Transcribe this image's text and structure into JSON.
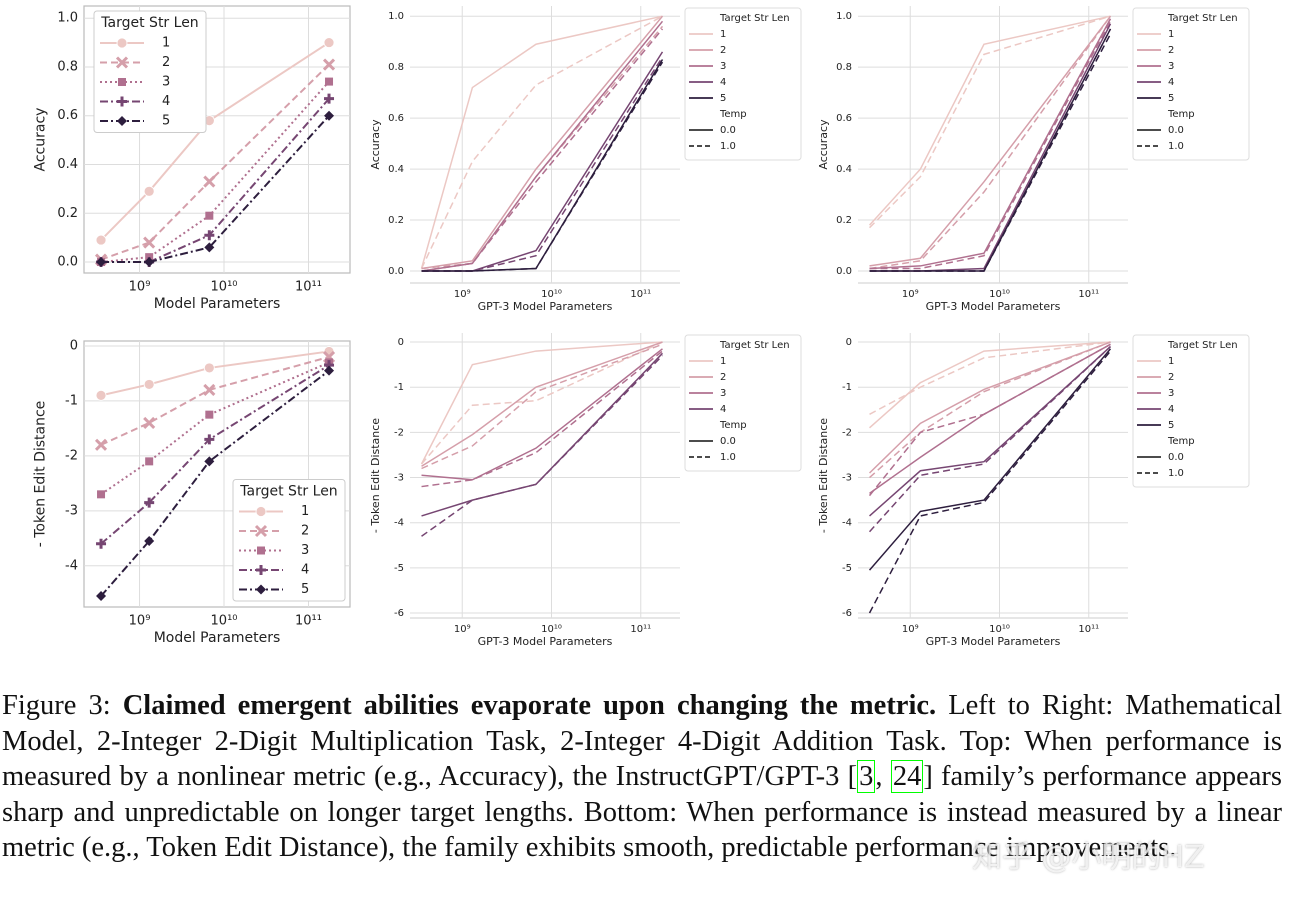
{
  "chart_data": [
    {
      "type": "line",
      "ylabel": "Accuracy",
      "xlabel": "Model Parameters",
      "log_x": true,
      "grid": true,
      "x": [
        350000000,
        1300000000,
        6700000000,
        175000000000
      ],
      "xlim": [
        220000000,
        310000000000
      ],
      "xticks": [
        {
          "value": 1000000000,
          "label": "10⁹"
        },
        {
          "value": 10000000000,
          "label": "10¹⁰"
        },
        {
          "value": 100000000000,
          "label": "10¹¹"
        }
      ],
      "ylim": [
        -0.045,
        1.05
      ],
      "yticks": [
        {
          "value": 0,
          "label": "0.0"
        },
        0.2,
        0.4,
        0.6,
        0.8,
        {
          "value": 1,
          "label": "1.0"
        }
      ],
      "legend_title": "Target Str Len",
      "legend": "upper left",
      "series": [
        {
          "name": "1",
          "color": "#ecc8c4",
          "dash": "solid",
          "marker": "o",
          "values": [
            0.09,
            0.29,
            0.58,
            0.9
          ]
        },
        {
          "name": "2",
          "color": "#d59faa",
          "dash": "dashed",
          "marker": "X",
          "values": [
            0.01,
            0.08,
            0.33,
            0.81
          ]
        },
        {
          "name": "3",
          "color": "#b0708f",
          "dash": "dotted",
          "marker": "s",
          "values": [
            0.0,
            0.02,
            0.19,
            0.74
          ]
        },
        {
          "name": "4",
          "color": "#764672",
          "dash": "dashdot",
          "marker": "P",
          "values": [
            0.0,
            0.0,
            0.11,
            0.67
          ]
        },
        {
          "name": "5",
          "color": "#2d1e3e",
          "dash": "dashdot",
          "marker": "D",
          "values": [
            0.0,
            0.0,
            0.06,
            0.6
          ]
        }
      ]
    },
    {
      "type": "line",
      "ylabel": "Accuracy",
      "xlabel": "GPT-3 Model Parameters",
      "log_x": true,
      "grid": true,
      "x": [
        350000000,
        1300000000,
        6700000000,
        175000000000
      ],
      "xlim": [
        260000000,
        275000000000
      ],
      "xticks": [
        {
          "value": 1000000000,
          "label": "10⁹"
        },
        {
          "value": 10000000000,
          "label": "10¹⁰"
        },
        {
          "value": 100000000000,
          "label": "10¹¹"
        }
      ],
      "ylim": [
        -0.047,
        1.04
      ],
      "yticks": [
        {
          "value": 0,
          "label": "0.0"
        },
        0.2,
        0.4,
        0.6,
        0.8,
        {
          "value": 1,
          "label": "1.0"
        }
      ],
      "legend_title": "Target Str Len",
      "legend": "outside right",
      "temp_title": "Temp",
      "temps": [
        "0.0",
        "1.0"
      ],
      "series": [
        {
          "name": "1",
          "color": "#ecc8c4",
          "lines": [
            [
              0.01,
              0.72,
              0.89,
              1.0
            ],
            [
              0.01,
              0.43,
              0.73,
              1.0
            ]
          ]
        },
        {
          "name": "2",
          "color": "#d59faa",
          "lines": [
            [
              0.01,
              0.04,
              0.4,
              1.0
            ],
            [
              0.01,
              0.03,
              0.37,
              0.96
            ]
          ]
        },
        {
          "name": "3",
          "color": "#b0708f",
          "lines": [
            [
              0.0,
              0.03,
              0.37,
              0.98
            ],
            [
              0.0,
              0.03,
              0.35,
              0.95
            ]
          ]
        },
        {
          "name": "4",
          "color": "#764672",
          "lines": [
            [
              0.0,
              0.0,
              0.08,
              0.86
            ],
            [
              0.0,
              0.0,
              0.06,
              0.84
            ]
          ]
        },
        {
          "name": "5",
          "color": "#2d1e3e",
          "lines": [
            [
              0.0,
              0.0,
              0.01,
              0.83
            ],
            [
              0.0,
              0.0,
              0.01,
              0.82
            ]
          ]
        }
      ]
    },
    {
      "type": "line",
      "ylabel": "Accuracy",
      "xlabel": "GPT-3 Model Parameters",
      "log_x": true,
      "grid": true,
      "x": [
        350000000,
        1300000000,
        6700000000,
        175000000000
      ],
      "xlim": [
        260000000,
        275000000000
      ],
      "xticks": [
        {
          "value": 1000000000,
          "label": "10⁹"
        },
        {
          "value": 10000000000,
          "label": "10¹⁰"
        },
        {
          "value": 100000000000,
          "label": "10¹¹"
        }
      ],
      "ylim": [
        -0.047,
        1.04
      ],
      "yticks": [
        {
          "value": 0,
          "label": "0.0"
        },
        0.2,
        0.4,
        0.6,
        0.8,
        {
          "value": 1,
          "label": "1.0"
        }
      ],
      "legend_title": "Target Str Len",
      "legend": "outside right",
      "temp_title": "Temp",
      "temps": [
        "0.0",
        "1.0"
      ],
      "series": [
        {
          "name": "1",
          "color": "#ecc8c4",
          "lines": [
            [
              0.18,
              0.4,
              0.89,
              1.0
            ],
            [
              0.17,
              0.37,
              0.85,
              1.0
            ]
          ]
        },
        {
          "name": "2",
          "color": "#d59faa",
          "lines": [
            [
              0.02,
              0.05,
              0.35,
              1.0
            ],
            [
              0.01,
              0.04,
              0.31,
              1.0
            ]
          ]
        },
        {
          "name": "3",
          "color": "#b0708f",
          "lines": [
            [
              0.01,
              0.02,
              0.07,
              0.99
            ],
            [
              0.01,
              0.01,
              0.06,
              0.98
            ]
          ]
        },
        {
          "name": "4",
          "color": "#764672",
          "lines": [
            [
              0.0,
              0.0,
              0.01,
              0.97
            ],
            [
              0.0,
              0.0,
              0.0,
              0.95
            ]
          ]
        },
        {
          "name": "5",
          "color": "#2d1e3e",
          "lines": [
            [
              0.0,
              0.0,
              0.0,
              0.95
            ],
            [
              0.0,
              0.0,
              0.0,
              0.93
            ]
          ]
        }
      ]
    },
    {
      "type": "line",
      "ylabel": "- Token Edit Distance",
      "xlabel": "Model Parameters",
      "log_x": true,
      "grid": true,
      "x": [
        350000000,
        1300000000,
        6700000000,
        175000000000
      ],
      "xlim": [
        220000000,
        310000000000
      ],
      "xticks": [
        {
          "value": 1000000000,
          "label": "10⁹"
        },
        {
          "value": 10000000000,
          "label": "10¹⁰"
        },
        {
          "value": 100000000000,
          "label": "10¹¹"
        }
      ],
      "ylim": [
        -4.75,
        0.09
      ],
      "yticks": [
        0,
        -1,
        -2,
        -3,
        -4
      ],
      "legend_title": "Target Str Len",
      "legend": "lower right",
      "series": [
        {
          "name": "1",
          "color": "#ecc8c4",
          "dash": "solid",
          "marker": "o",
          "values": [
            -0.9,
            -0.7,
            -0.4,
            -0.1
          ]
        },
        {
          "name": "2",
          "color": "#d59faa",
          "dash": "dashed",
          "marker": "X",
          "values": [
            -1.8,
            -1.4,
            -0.8,
            -0.2
          ]
        },
        {
          "name": "3",
          "color": "#b0708f",
          "dash": "dotted",
          "marker": "s",
          "values": [
            -2.7,
            -2.1,
            -1.25,
            -0.3
          ]
        },
        {
          "name": "4",
          "color": "#764672",
          "dash": "dashdot",
          "marker": "P",
          "values": [
            -3.6,
            -2.85,
            -1.7,
            -0.35
          ]
        },
        {
          "name": "5",
          "color": "#2d1e3e",
          "dash": "dashdot",
          "marker": "D",
          "values": [
            -4.55,
            -3.55,
            -2.1,
            -0.45
          ]
        }
      ]
    },
    {
      "type": "line",
      "ylabel": "- Token Edit Distance",
      "xlabel": "GPT-3 Model Parameters",
      "log_x": true,
      "grid": true,
      "x": [
        350000000,
        1300000000,
        6700000000,
        175000000000
      ],
      "xlim": [
        260000000,
        275000000000
      ],
      "xticks": [
        {
          "value": 1000000000,
          "label": "10⁹"
        },
        {
          "value": 10000000000,
          "label": "10¹⁰"
        },
        {
          "value": 100000000000,
          "label": "10¹¹"
        }
      ],
      "ylim": [
        -6.11,
        0.2
      ],
      "yticks": [
        0,
        -1,
        -2,
        -3,
        -4,
        -5,
        -6
      ],
      "legend_title": "Target Str Len",
      "legend": "outside right",
      "temp_title": "Temp",
      "temps": [
        "0.0",
        "1.0"
      ],
      "series": [
        {
          "name": "1",
          "color": "#ecc8c4",
          "lines": [
            [
              -2.7,
              -0.5,
              -0.2,
              0.0
            ],
            [
              -2.7,
              -1.4,
              -1.3,
              0.0
            ]
          ]
        },
        {
          "name": "2",
          "color": "#d59faa",
          "lines": [
            [
              -2.75,
              -2.05,
              -1.0,
              0.0
            ],
            [
              -2.8,
              -2.3,
              -1.1,
              -0.05
            ]
          ]
        },
        {
          "name": "3",
          "color": "#b0708f",
          "lines": [
            [
              -2.95,
              -3.05,
              -2.35,
              -0.15
            ],
            [
              -3.2,
              -3.05,
              -2.45,
              -0.2
            ]
          ]
        },
        {
          "name": "4",
          "color": "#764672",
          "lines": [
            [
              -3.85,
              -3.5,
              -3.15,
              -0.25
            ],
            [
              -4.3,
              -3.5,
              -3.15,
              -0.3
            ]
          ]
        }
      ]
    },
    {
      "type": "line",
      "ylabel": "- Token Edit Distance",
      "xlabel": "GPT-3 Model Parameters",
      "log_x": true,
      "grid": true,
      "x": [
        350000000,
        1300000000,
        6700000000,
        175000000000
      ],
      "xlim": [
        260000000,
        275000000000
      ],
      "xticks": [
        {
          "value": 1000000000,
          "label": "10⁹"
        },
        {
          "value": 10000000000,
          "label": "10¹⁰"
        },
        {
          "value": 100000000000,
          "label": "10¹¹"
        }
      ],
      "ylim": [
        -6.11,
        0.2
      ],
      "yticks": [
        0,
        -1,
        -2,
        -3,
        -4,
        -5,
        -6
      ],
      "legend_title": "Target Str Len",
      "legend": "outside right",
      "temp_title": "Temp",
      "temps": [
        "0.0",
        "1.0"
      ],
      "series": [
        {
          "name": "1",
          "color": "#ecc8c4",
          "lines": [
            [
              -1.9,
              -0.9,
              -0.2,
              0.0
            ],
            [
              -1.6,
              -1.0,
              -0.35,
              0.0
            ]
          ]
        },
        {
          "name": "2",
          "color": "#d59faa",
          "lines": [
            [
              -2.9,
              -1.8,
              -1.05,
              0.0
            ],
            [
              -3.0,
              -2.0,
              -1.1,
              0.0
            ]
          ]
        },
        {
          "name": "3",
          "color": "#b0708f",
          "lines": [
            [
              -3.35,
              -2.55,
              -1.6,
              -0.05
            ],
            [
              -3.4,
              -2.0,
              -1.6,
              -0.05
            ]
          ]
        },
        {
          "name": "4",
          "color": "#764672",
          "lines": [
            [
              -3.85,
              -2.85,
              -2.65,
              -0.1
            ],
            [
              -4.2,
              -2.95,
              -2.7,
              -0.1
            ]
          ]
        },
        {
          "name": "5",
          "color": "#2d1e3e",
          "lines": [
            [
              -5.05,
              -3.75,
              -3.5,
              -0.15
            ],
            [
              -6.0,
              -3.85,
              -3.55,
              -0.2
            ]
          ]
        }
      ]
    }
  ],
  "caption": {
    "parts": [
      {
        "text": "Figure 3: "
      },
      {
        "text": "Claimed emergent abilities evaporate upon changing the metric.",
        "bold": true
      },
      {
        "text": " Left to Right: Mathematical Model, 2-Integer 2-Digit Multiplication Task, 2-Integer 4-Digit Addition Task. Top: When performance is measured by a nonlinear metric (e.g., Accuracy), the InstructGPT/GPT-3 ["
      },
      {
        "text": "3",
        "ref": true
      },
      {
        "text": ", "
      },
      {
        "text": "24",
        "ref": true
      },
      {
        "text": "] family’s performance appears sharp and unpredictable on longer target lengths. Bottom: When performance is instead measured by a linear metric (e.g., Token Edit Distance), the family exhibits smooth, predictable performance improvements."
      }
    ]
  },
  "watermark": "知乎 @小明的HZ"
}
